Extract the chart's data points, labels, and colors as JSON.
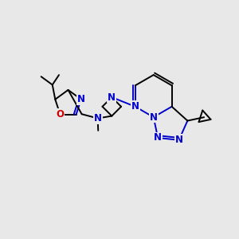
{
  "bg_color": "#e8e8e8",
  "bond_color": "#000000",
  "n_color": "#0000cc",
  "o_color": "#cc0000",
  "lw": 1.4,
  "dbo": 0.012,
  "fs": 8.5,
  "xlim": [
    0,
    1
  ],
  "ylim": [
    0,
    1
  ]
}
